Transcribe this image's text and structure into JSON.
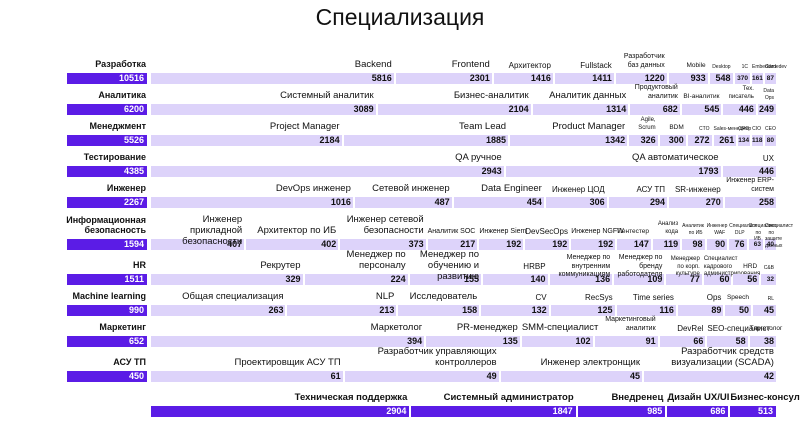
{
  "chart_data": {
    "type": "bar",
    "title": "Специализация",
    "categories": [
      {
        "name": "Разработка",
        "total": 10516,
        "segments": [
          {
            "label": "Backend",
            "value": 5816
          },
          {
            "label": "Frontend",
            "value": 2301
          },
          {
            "label": "Архитектор",
            "value": 1416
          },
          {
            "label": "Fullstack",
            "value": 1411
          },
          {
            "label": "Разработчик баз данных",
            "value": 1220
          },
          {
            "label": "Mobile",
            "value": 933
          },
          {
            "label": "Desktop",
            "value": 548
          },
          {
            "label": "1C",
            "value": 370
          },
          {
            "label": "Embedded",
            "value": 161
          },
          {
            "label": "Gamedev",
            "value": 87
          }
        ]
      },
      {
        "name": "Аналитика",
        "total": 6200,
        "segments": [
          {
            "label": "Системный аналитик",
            "value": 3089
          },
          {
            "label": "Бизнес-аналитик",
            "value": 2104
          },
          {
            "label": "Аналитик данных",
            "value": 1314
          },
          {
            "label": "Продуктовый аналитик",
            "value": 682
          },
          {
            "label": "BI-аналитик",
            "value": 545
          },
          {
            "label": "Тех. писатель",
            "value": 446
          },
          {
            "label": "Data Ops",
            "value": 249
          }
        ]
      },
      {
        "name": "Менеджмент",
        "total": 5526,
        "segments": [
          {
            "label": "Project Manager",
            "value": 2184
          },
          {
            "label": "Team Lead",
            "value": 1885
          },
          {
            "label": "Product Manager",
            "value": 1342
          },
          {
            "label": "Agile, Scrum",
            "value": 326
          },
          {
            "label": "BDM",
            "value": 300
          },
          {
            "label": "CTO",
            "value": 272
          },
          {
            "label": "Sales-менеджер",
            "value": 261
          },
          {
            "label": "CPO",
            "value": 134
          },
          {
            "label": "CIO",
            "value": 118
          },
          {
            "label": "CEO",
            "value": 80
          }
        ]
      },
      {
        "name": "Тестирование",
        "total": 4385,
        "segments": [
          {
            "label": "QA ручное",
            "value": 2943
          },
          {
            "label": "QA автоматическое",
            "value": 1793
          },
          {
            "label": "UX",
            "value": 446
          }
        ]
      },
      {
        "name": "Инженер",
        "total": 2267,
        "segments": [
          {
            "label": "DevOps инженер",
            "value": 1016
          },
          {
            "label": "Сетевой инженер",
            "value": 487
          },
          {
            "label": "Data Engineer",
            "value": 454
          },
          {
            "label": "Инженер ЦОД",
            "value": 306
          },
          {
            "label": "АСУ ТП",
            "value": 294
          },
          {
            "label": "SR-инженер",
            "value": 270
          },
          {
            "label": "Инженер ERP-систем",
            "value": 258
          }
        ]
      },
      {
        "name": "Информационная безопасность",
        "total": 1594,
        "segments": [
          {
            "label": "Инженер прикладной безопасности",
            "value": 407
          },
          {
            "label": "Архитектор по ИБ",
            "value": 402
          },
          {
            "label": "Инженер сетевой безопасности",
            "value": 373
          },
          {
            "label": "Аналитик SOC",
            "value": 217
          },
          {
            "label": "Инженер Siem",
            "value": 192
          },
          {
            "label": "DevSecOps",
            "value": 192
          },
          {
            "label": "Инженер NGFW",
            "value": 192
          },
          {
            "label": "Пентестер",
            "value": 147
          },
          {
            "label": "Анализ кода",
            "value": 119
          },
          {
            "label": "Аналитик по ИБ",
            "value": 98
          },
          {
            "label": "Инженер WAF",
            "value": 90
          },
          {
            "label": "Специалист DLP",
            "value": 76
          },
          {
            "label": "Специалист по ИБ",
            "value": 63
          },
          {
            "label": "Специалист по защите данных",
            "value": 40
          }
        ]
      },
      {
        "name": "HR",
        "total": 1511,
        "segments": [
          {
            "label": "Рекрутер",
            "value": 329
          },
          {
            "label": "Менеджер по персоналу",
            "value": 224
          },
          {
            "label": "Менеджер по обучению и развитию",
            "value": 155
          },
          {
            "label": "HRBP",
            "value": 140
          },
          {
            "label": "Менеджер по внутренним коммуникациям",
            "value": 136
          },
          {
            "label": "Менеджер по бренду работодателя",
            "value": 109
          },
          {
            "label": "Менеджер по корп. культуре",
            "value": 77
          },
          {
            "label": "Специалист кадрового администрирования",
            "value": 60
          },
          {
            "label": "HRD",
            "value": 56
          },
          {
            "label": "C&B",
            "value": 32
          }
        ]
      },
      {
        "name": "Machine learning",
        "total": 990,
        "segments": [
          {
            "label": "Общая специализация",
            "value": 263
          },
          {
            "label": "NLP",
            "value": 213
          },
          {
            "label": "Исследователь",
            "value": 158
          },
          {
            "label": "CV",
            "value": 132
          },
          {
            "label": "RecSys",
            "value": 125
          },
          {
            "label": "Time series",
            "value": 116
          },
          {
            "label": "Ops",
            "value": 89
          },
          {
            "label": "Speech",
            "value": 50
          },
          {
            "label": "RL",
            "value": 45
          }
        ]
      },
      {
        "name": "Маркетинг",
        "total": 652,
        "segments": [
          {
            "label": "Маркетолог",
            "value": 394
          },
          {
            "label": "PR-менеджер",
            "value": 135
          },
          {
            "label": "SMM-специалист",
            "value": 102
          },
          {
            "label": "Маркетинговый аналитик",
            "value": 91
          },
          {
            "label": "DevRel",
            "value": 66
          },
          {
            "label": "SEO-специалист",
            "value": 58
          },
          {
            "label": "Таргетолог",
            "value": 38
          }
        ]
      },
      {
        "name": "АСУ ТП",
        "total": 450,
        "segments": [
          {
            "label": "Проектировщик АСУ ТП",
            "value": 61
          },
          {
            "label": "Разработчик управляющих контроллеров",
            "value": 49
          },
          {
            "label": "Инженер электронщик",
            "value": 45
          },
          {
            "label": "Разработчик средств визуализации (SCADA)",
            "value": 42
          }
        ]
      }
    ],
    "bottom_bars": [
      {
        "label": "Техническая поддержка",
        "value": 2904
      },
      {
        "label": "Системный администратор",
        "value": 1847
      },
      {
        "label": "Внедренец",
        "value": 985
      },
      {
        "label": "Дизайн UX/UI",
        "value": 686
      },
      {
        "label": "Бизнес-консультант",
        "value": 513
      }
    ],
    "colors": {
      "primary": "#5b1ce6",
      "secondary": "#ddd3fa"
    }
  }
}
